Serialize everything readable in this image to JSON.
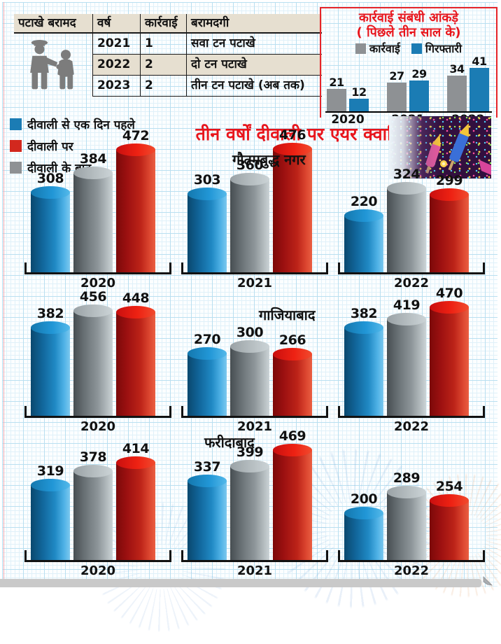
{
  "seizure_table": {
    "title": "पटाखे बरामद",
    "headers": [
      "वर्ष",
      "कार्रवाई",
      "बरामदगी"
    ],
    "rows": [
      [
        "2021",
        "1",
        "सवा टन पटाखे"
      ],
      [
        "2022",
        "2",
        "दो टन पटाखे"
      ],
      [
        "2023",
        "2",
        "तीन टन पटाखे (अब तक)"
      ]
    ]
  },
  "action_stats": {
    "title_line1": "कार्रवाई संबंधी आंकड़े",
    "title_line2": "( पिछले तीन साल के)",
    "legend": [
      {
        "label": "कार्रवाई",
        "color": "#8e9194"
      },
      {
        "label": "गिरफ्तारी",
        "color": "#1b7cb4"
      }
    ]
  },
  "aqi_legend": {
    "items": [
      {
        "label": "दीवाली से एक दिन पहले",
        "color": "#1b7cb4",
        "tone": "blue"
      },
      {
        "label": "दीवाली पर",
        "color": "#d2281e",
        "tone": "red"
      },
      {
        "label": "दीवाली के बाद",
        "color": "#8e9194",
        "tone": "gray"
      }
    ]
  },
  "main_title": "तीन वर्षों दीवाली पर एयर क्वालिटी इंडेक्स",
  "chart_data": [
    {
      "id": "action-stats",
      "type": "bar",
      "title": "कार्रवाई संबंधी आंकड़े ( पिछले तीन साल के)",
      "categories": [
        "2020",
        "2021",
        "2022"
      ],
      "series": [
        {
          "name": "कार्रवाई",
          "color": "#8e9194",
          "values": [
            21,
            27,
            34
          ]
        },
        {
          "name": "गिरफ्तारी",
          "color": "#1b7cb4",
          "values": [
            12,
            29,
            41
          ]
        }
      ],
      "ylim": [
        0,
        45
      ],
      "grid": false,
      "legend_position": "top"
    },
    {
      "id": "gautambuddh-nagar",
      "type": "bar",
      "title": "गौतमबुद्ध नगर",
      "categories": [
        "2020",
        "2021",
        "2022"
      ],
      "series": [
        {
          "name": "दीवाली से एक दिन पहले",
          "tone": "blue",
          "color": "#1b7cb4",
          "values": [
            308,
            303,
            220
          ]
        },
        {
          "name": "दीवाली के बाद",
          "tone": "gray",
          "color": "#8e9194",
          "values": [
            384,
            360,
            324
          ]
        },
        {
          "name": "दीवाली पर",
          "tone": "red",
          "color": "#d2281e",
          "values": [
            472,
            476,
            299
          ]
        }
      ],
      "ylim": [
        0,
        500
      ],
      "grid": false
    },
    {
      "id": "ghaziabad",
      "type": "bar",
      "title": "गाजियाबाद",
      "categories": [
        "2020",
        "2021",
        "2022"
      ],
      "series": [
        {
          "name": "दीवाली से एक दिन पहले",
          "tone": "blue",
          "color": "#1b7cb4",
          "values": [
            382,
            270,
            382
          ]
        },
        {
          "name": "दीवाली के बाद",
          "tone": "gray",
          "color": "#8e9194",
          "values": [
            456,
            300,
            419
          ]
        },
        {
          "name": "दीवाली पर",
          "tone": "red",
          "color": "#d2281e",
          "values": [
            448,
            266,
            470
          ]
        }
      ],
      "ylim": [
        0,
        500
      ],
      "grid": false
    },
    {
      "id": "faridabad",
      "type": "bar",
      "title": "फरीदाबाद",
      "categories": [
        "2020",
        "2021",
        "2022"
      ],
      "series": [
        {
          "name": "दीवाली से एक दिन पहले",
          "tone": "blue",
          "color": "#1b7cb4",
          "values": [
            319,
            337,
            200
          ]
        },
        {
          "name": "दीवाली के बाद",
          "tone": "gray",
          "color": "#8e9194",
          "values": [
            378,
            399,
            289
          ]
        },
        {
          "name": "दीवाली पर",
          "tone": "red",
          "color": "#d2281e",
          "values": [
            414,
            469,
            254
          ]
        }
      ],
      "ylim": [
        0,
        500
      ],
      "grid": false
    }
  ]
}
